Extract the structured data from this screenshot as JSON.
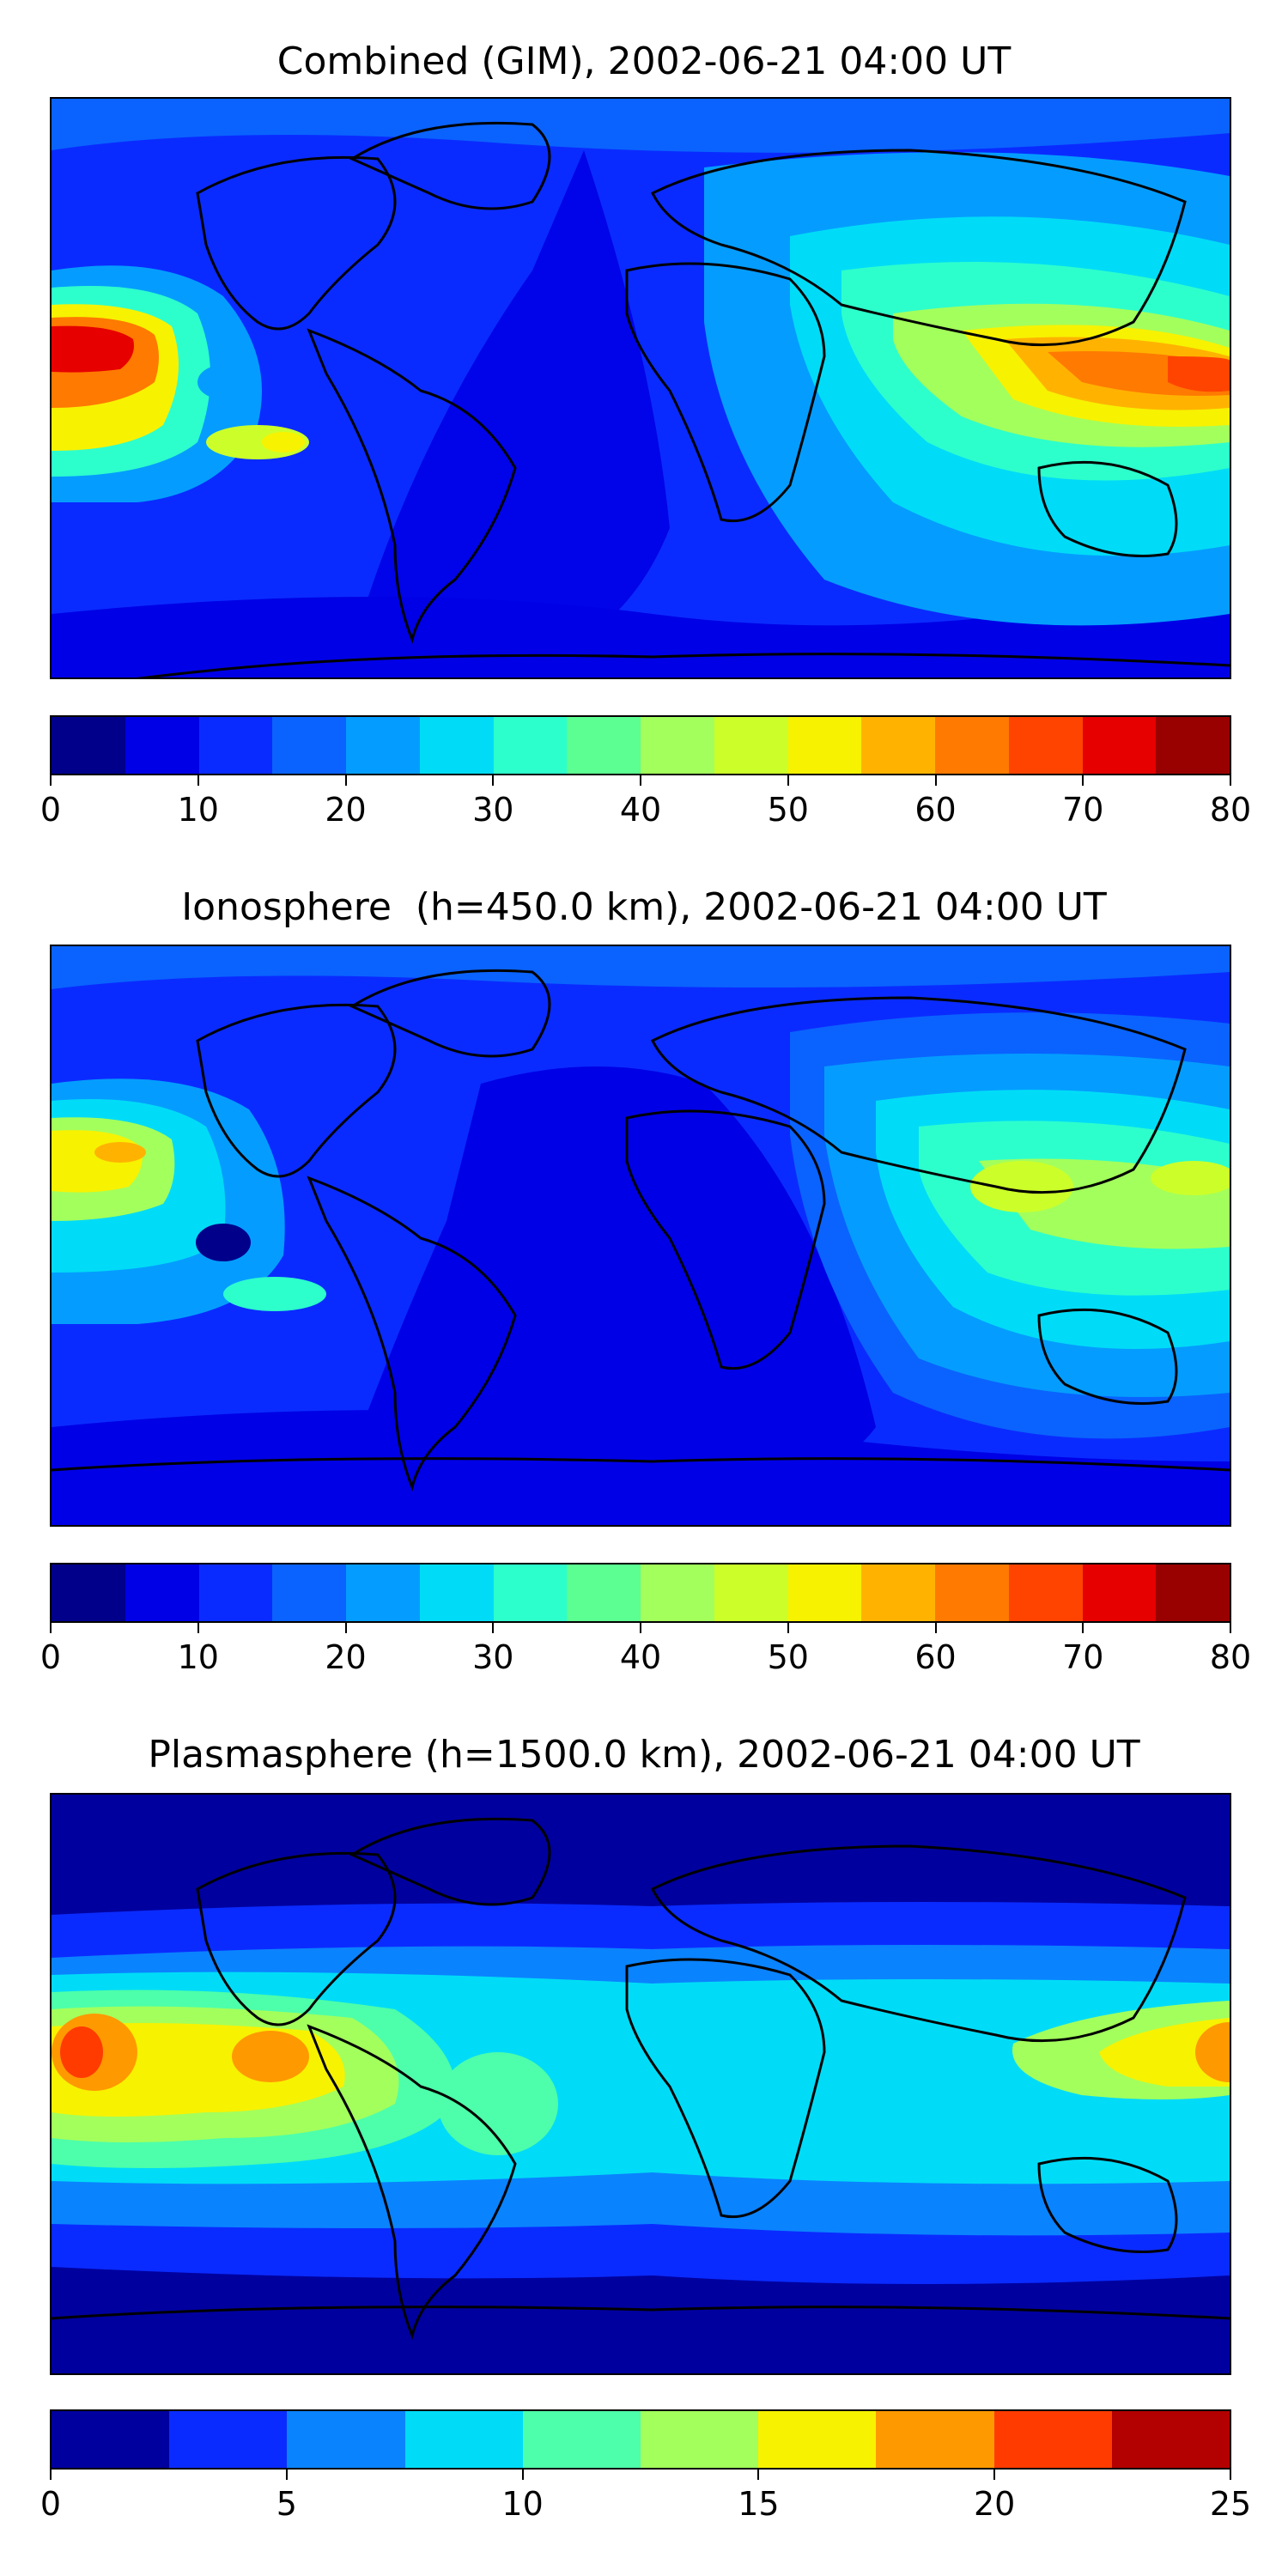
{
  "panels": [
    {
      "title": "Combined (GIM), 2002-06-21 04:00 UT",
      "colorbar": {
        "ticks": [
          "0",
          "10",
          "20",
          "30",
          "40",
          "50",
          "60",
          "70",
          "80"
        ],
        "min": 0,
        "max": 80,
        "colors": [
          "#00008b",
          "#0000e6",
          "#0a2bff",
          "#0a63ff",
          "#049dff",
          "#00dcf7",
          "#2dffcc",
          "#5cff91",
          "#a3ff5c",
          "#ccff29",
          "#f7f200",
          "#ffb300",
          "#ff7a00",
          "#ff4400",
          "#e60000",
          "#990000"
        ]
      }
    },
    {
      "title": "Ionosphere  (h=450.0 km), 2002-06-21 04:00 UT",
      "colorbar": {
        "ticks": [
          "0",
          "10",
          "20",
          "30",
          "40",
          "50",
          "60",
          "70",
          "80"
        ],
        "min": 0,
        "max": 80,
        "colors": [
          "#00008b",
          "#0000e6",
          "#0a2bff",
          "#0a63ff",
          "#049dff",
          "#00dcf7",
          "#2dffcc",
          "#5cff91",
          "#a3ff5c",
          "#ccff29",
          "#f7f200",
          "#ffb300",
          "#ff7a00",
          "#ff4400",
          "#e60000",
          "#990000"
        ]
      }
    },
    {
      "title": "Plasmasphere (h=1500.0 km), 2002-06-21 04:00 UT",
      "colorbar": {
        "ticks": [
          "0",
          "5",
          "10",
          "15",
          "20",
          "25"
        ],
        "min": 0,
        "max": 25,
        "colors": [
          "#00009f",
          "#0a2bff",
          "#0a83ff",
          "#00dcf7",
          "#4dffaa",
          "#a3ff5c",
          "#f7f200",
          "#ff9900",
          "#ff3b00",
          "#b30000"
        ]
      }
    }
  ]
}
